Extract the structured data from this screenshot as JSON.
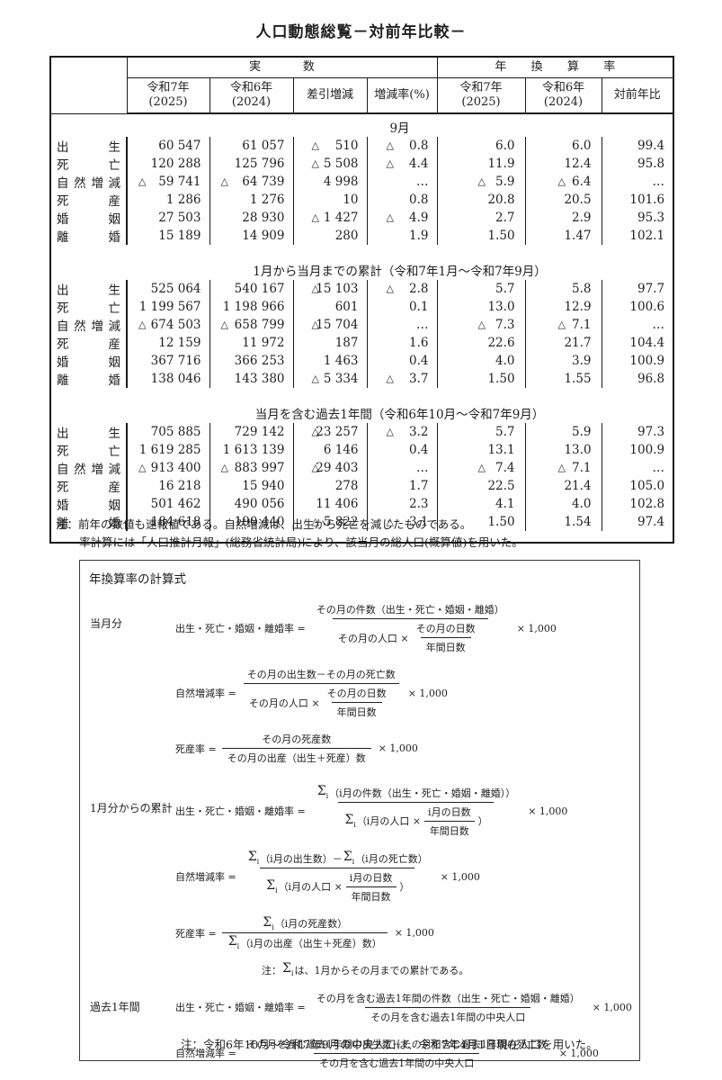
{
  "title": "人口動態総覧－対前年比較－",
  "table": {
    "group_headers": {
      "actual": "実数",
      "annualized": "年換算率"
    },
    "columns": [
      {
        "l1": "令和7年",
        "l2": "(2025)"
      },
      {
        "l1": "令和6年",
        "l2": "(2024)"
      },
      {
        "l1": "差引増減",
        "l2": ""
      },
      {
        "l1": "増減率(%)",
        "l2": ""
      },
      {
        "l1": "令和7年",
        "l2": "(2025)"
      },
      {
        "l1": "令和6年",
        "l2": "(2024)"
      },
      {
        "l1": "対前年比",
        "l2": ""
      }
    ],
    "sections": [
      {
        "caption": "9月",
        "rows": [
          {
            "label": "出生",
            "values": [
              "60 547",
              "61 057",
              "△ 510",
              "△ 0.8",
              "6.0",
              "6.0",
              "99.4"
            ]
          },
          {
            "label": "死亡",
            "values": [
              "120 288",
              "125 796",
              "△ 5 508",
              "△ 4.4",
              "11.9",
              "12.4",
              "95.8"
            ]
          },
          {
            "label": "自然増減",
            "values": [
              "△ 59 741",
              "△ 64 739",
              "4 998",
              "…",
              "△ 5.9",
              "△ 6.4",
              "…"
            ]
          },
          {
            "label": "死産",
            "values": [
              "1 286",
              "1 276",
              "10",
              "0.8",
              "20.8",
              "20.5",
              "101.6"
            ]
          },
          {
            "label": "婚姻",
            "values": [
              "27 503",
              "28 930",
              "△ 1 427",
              "△ 4.9",
              "2.7",
              "2.9",
              "95.3"
            ]
          },
          {
            "label": "離婚",
            "values": [
              "15 189",
              "14 909",
              "280",
              "1.9",
              "1.50",
              "1.47",
              "102.1"
            ]
          }
        ]
      },
      {
        "caption": "1月から当月までの累計（令和7年1月～令和7年9月）",
        "rows": [
          {
            "label": "出生",
            "values": [
              "525 064",
              "540 167",
              "△ 15 103",
              "△ 2.8",
              "5.7",
              "5.8",
              "97.7"
            ]
          },
          {
            "label": "死亡",
            "values": [
              "1 199 567",
              "1 198 966",
              "601",
              "0.1",
              "13.0",
              "12.9",
              "100.6"
            ]
          },
          {
            "label": "自然増減",
            "values": [
              "△ 674 503",
              "△ 658 799",
              "△ 15 704",
              "…",
              "△ 7.3",
              "△ 7.1",
              "…"
            ]
          },
          {
            "label": "死産",
            "values": [
              "12 159",
              "11 972",
              "187",
              "1.6",
              "22.6",
              "21.7",
              "104.4"
            ]
          },
          {
            "label": "婚姻",
            "values": [
              "367 716",
              "366 253",
              "1 463",
              "0.4",
              "4.0",
              "3.9",
              "100.9"
            ]
          },
          {
            "label": "離婚",
            "values": [
              "138 046",
              "143 380",
              "△ 5 334",
              "△ 3.7",
              "1.50",
              "1.55",
              "96.8"
            ]
          }
        ]
      },
      {
        "caption": "当月を含む過去1年間（令和6年10月～令和7年9月）",
        "rows": [
          {
            "label": "出生",
            "values": [
              "705 885",
              "729 142",
              "△ 23 257",
              "△ 3.2",
              "5.7",
              "5.9",
              "97.3"
            ]
          },
          {
            "label": "死亡",
            "values": [
              "1 619 285",
              "1 613 139",
              "6 146",
              "0.4",
              "13.1",
              "13.0",
              "100.9"
            ]
          },
          {
            "label": "自然増減",
            "values": [
              "△ 913 400",
              "△ 883 997",
              "△ 29 403",
              "…",
              "△ 7.4",
              "△ 7.1",
              "…"
            ]
          },
          {
            "label": "死産",
            "values": [
              "16 218",
              "15 940",
              "278",
              "1.7",
              "22.5",
              "21.4",
              "105.0"
            ]
          },
          {
            "label": "婚姻",
            "values": [
              "501 462",
              "490 056",
              "11 406",
              "2.3",
              "4.1",
              "4.0",
              "102.8"
            ]
          },
          {
            "label": "離婚",
            "values": [
              "184 618",
              "190 440",
              "△ 5 822",
              "△ 3.1",
              "1.50",
              "1.54",
              "97.4"
            ]
          }
        ]
      }
    ]
  },
  "notes": [
    "注：前年の数値も速報値である。自然増減は、出生から死亡を減じたものである。",
    "率計算には「人口推計月報」(総務省統計局)により、該当月の総人口(概算値)を用いた。"
  ],
  "formula_box": {
    "title": "年換算率の計算式",
    "groups": [
      {
        "label": "当月分",
        "items": [
          {
            "label": "出生・死亡・婚姻・離婚率",
            "num": [
              {
                "t": "その月の件数（出生・死亡・婚姻・離婚）"
              }
            ],
            "den": [
              {
                "t": "その月の人口 ×"
              },
              {
                "frac": {
                  "n": [
                    {
                      "t": "その月の日数"
                    }
                  ],
                  "d": [
                    {
                      "t": "年間日数"
                    }
                  ]
                }
              }
            ],
            "mult": "× 1,000"
          },
          {
            "label": "自然増減率",
            "num": [
              {
                "t": "その月の出生数－その月の死亡数"
              }
            ],
            "den": [
              {
                "t": "その月の人口 ×"
              },
              {
                "frac": {
                  "n": [
                    {
                      "t": "その月の日数"
                    }
                  ],
                  "d": [
                    {
                      "t": "年間日数"
                    }
                  ]
                }
              }
            ],
            "mult": "× 1,000"
          },
          {
            "label": "死産率",
            "num": [
              {
                "t": "その月の死産数"
              }
            ],
            "den": [
              {
                "t": "その月の出産（出生＋死産）数"
              }
            ],
            "mult": "× 1,000"
          }
        ]
      },
      {
        "label": "1月分からの累計",
        "items": [
          {
            "label": "出生・死亡・婚姻・離婚率",
            "num": [
              {
                "sigma": "i"
              },
              {
                "t": "（i月の件数（出生・死亡・婚姻・離婚））"
              }
            ],
            "den": [
              {
                "sigma": "i"
              },
              {
                "t": "（i月の人口 ×"
              },
              {
                "frac": {
                  "n": [
                    {
                      "t": "i月の日数"
                    }
                  ],
                  "d": [
                    {
                      "t": "年間日数"
                    }
                  ]
                }
              },
              {
                "t": "）"
              }
            ],
            "mult": "× 1,000"
          },
          {
            "label": "自然増減率",
            "num": [
              {
                "sigma": "i"
              },
              {
                "t": "（i月の出生数）－"
              },
              {
                "sigma": "i"
              },
              {
                "t": "（i月の死亡数）"
              }
            ],
            "den": [
              {
                "sigma": "i"
              },
              {
                "t": "（i月の人口 ×"
              },
              {
                "frac": {
                  "n": [
                    {
                      "t": "i月の日数"
                    }
                  ],
                  "d": [
                    {
                      "t": "年間日数"
                    }
                  ]
                }
              },
              {
                "t": "）"
              }
            ],
            "mult": "× 1,000"
          },
          {
            "label": "死産率",
            "num": [
              {
                "sigma": "i"
              },
              {
                "t": "（i月の死産数）"
              }
            ],
            "den": [
              {
                "sigma": "i"
              },
              {
                "t": "（i月の出産（出生＋死産）数）"
              }
            ],
            "mult": "× 1,000"
          },
          {
            "note": [
              {
                "t": "注："
              },
              {
                "sigma": "i"
              },
              {
                "t": "は、1月からその月までの累計である。"
              }
            ]
          }
        ]
      },
      {
        "label": "過去1年間",
        "items": [
          {
            "label": "出生・死亡・婚姻・離婚率",
            "num": [
              {
                "t": "その月を含む過去1年間の件数（出生・死亡・婚姻・離婚）"
              }
            ],
            "den": [
              {
                "t": "その月を含む過去1年間の中央人口"
              }
            ],
            "mult": "× 1,000"
          },
          {
            "label": "自然増減率",
            "num": [
              {
                "t": "その月を含む過去1年間の出生数－その月を含む過去1年間の死亡数"
              }
            ],
            "den": [
              {
                "t": "その月を含む過去1年間の中央人口"
              }
            ],
            "mult": "× 1,000"
          },
          {
            "label": "死産率",
            "num": [
              {
                "t": "その月を含む過去1年間の死産数"
              }
            ],
            "den": [
              {
                "t": "その月を含む過去1年間の出産（出生＋死産）数"
              }
            ],
            "mult": "× 1,000"
          }
        ]
      }
    ],
    "bottom_note": "注：令和6年10月～令和7年9月の中央人口は、令和7年4月1日現在人口を用いた。"
  }
}
